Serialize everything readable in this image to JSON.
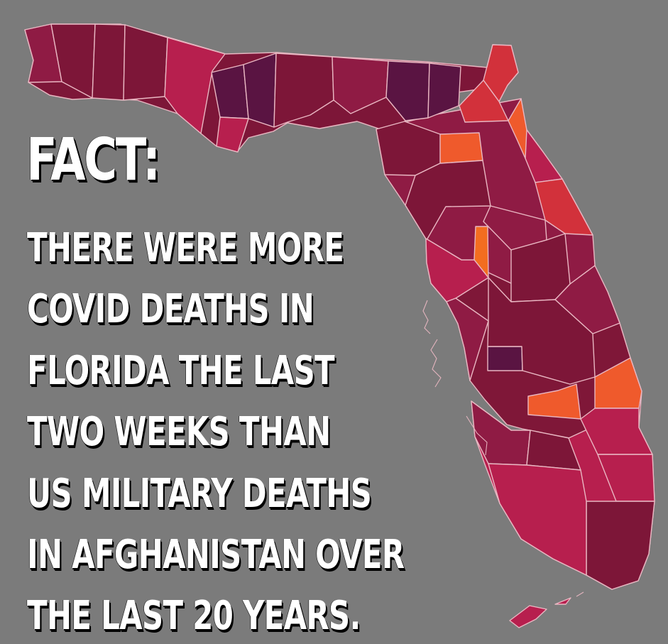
{
  "headline": "FACT:",
  "body_lines": [
    "THERE WERE MORE",
    "COVID DEATHS IN",
    "FLORIDA THE LAST",
    "TWO WEEKS THAN",
    "US MILITARY DEATHS",
    "IN AFGHANISTAN OVER",
    "THE LAST 20 YEARS."
  ],
  "colors": {
    "background": "#7b7b7b",
    "deep_purple": "#5a1442",
    "dark_maroon": "#7d1638",
    "maroon": "#8f1b44",
    "crimson": "#b71f4e",
    "red": "#d2313b",
    "orange": "#ef5a2c",
    "bright_orange": "#f36d20",
    "border": "#e9b7c2",
    "text": "#ffffff",
    "shadow": "#000000"
  }
}
